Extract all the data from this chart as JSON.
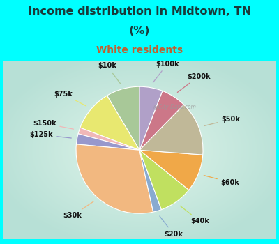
{
  "title_line1": "Income distribution in Midtown, TN",
  "title_line2": "(%)",
  "subtitle": "White residents",
  "title_color": "#1a3a3a",
  "subtitle_color": "#c06030",
  "bg_color": "#00ffff",
  "chart_bg_outer": "#b0e8d8",
  "chart_bg_inner": "#e8f8f0",
  "watermark": "@City-Data.com",
  "labels": [
    "$10k",
    "$75k",
    "$150k",
    "$125k",
    "$30k",
    "$20k",
    "$40k",
    "$60k",
    "$50k",
    "$200k",
    "$100k"
  ],
  "values": [
    8.0,
    10.0,
    1.5,
    2.5,
    28.0,
    2.0,
    8.0,
    9.0,
    13.0,
    6.0,
    5.5
  ],
  "colors": [
    "#a8c898",
    "#e8e870",
    "#f0b8b8",
    "#9898cc",
    "#f2b880",
    "#88aad0",
    "#c0e060",
    "#f0a848",
    "#c0b898",
    "#cc7788",
    "#b0a0c8"
  ],
  "startangle": 90,
  "figsize": [
    4.0,
    3.5
  ],
  "dpi": 100
}
